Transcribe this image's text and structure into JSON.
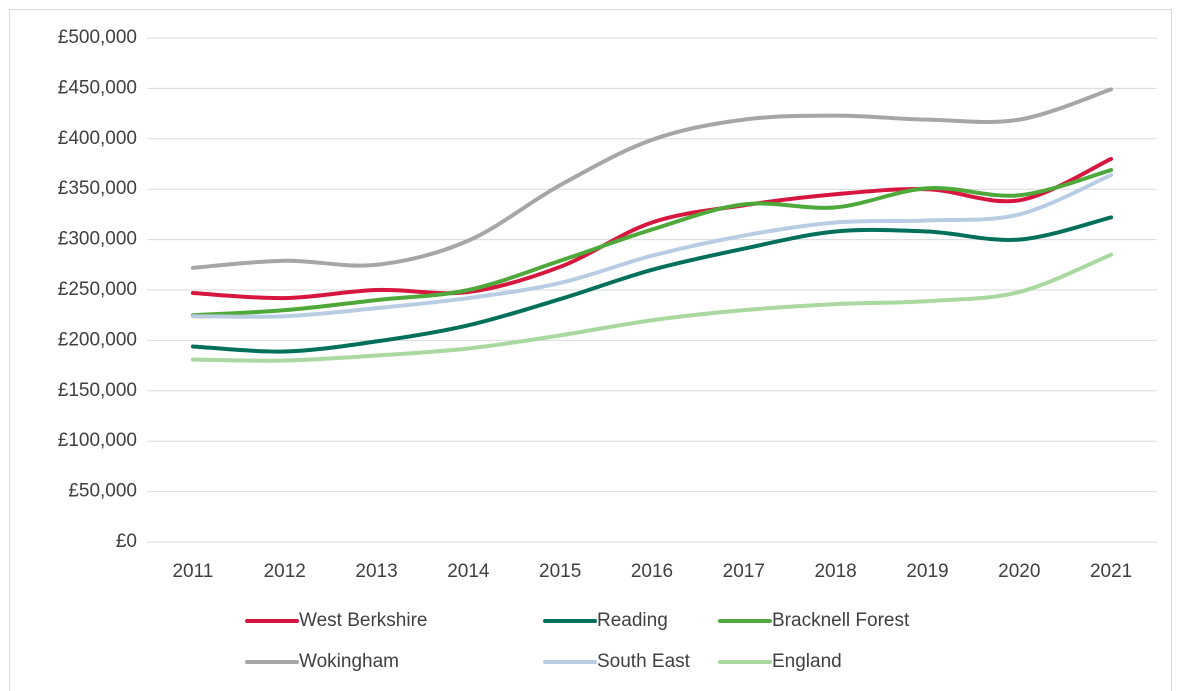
{
  "chart_data": {
    "type": "line",
    "categories": [
      "2011",
      "2012",
      "2013",
      "2014",
      "2015",
      "2016",
      "2017",
      "2018",
      "2019",
      "2020",
      "2021"
    ],
    "series": [
      {
        "name": "West Berkshire",
        "color": "#d6163f",
        "values": [
          247000,
          242000,
          250000,
          248000,
          273000,
          317000,
          334000,
          345000,
          350000,
          339000,
          380000
        ]
      },
      {
        "name": "Reading",
        "color": "#00705a",
        "values": [
          194000,
          189000,
          199000,
          215000,
          241000,
          270000,
          291000,
          308000,
          308000,
          300000,
          322000
        ]
      },
      {
        "name": "Bracknell Forest",
        "color": "#4fa83a",
        "values": [
          225000,
          230000,
          240000,
          250000,
          279000,
          310000,
          335000,
          332000,
          351000,
          344000,
          369000
        ]
      },
      {
        "name": "Wokingham",
        "color": "#a6a6a6",
        "values": [
          272000,
          279000,
          275000,
          299000,
          354000,
          399000,
          419000,
          423000,
          419000,
          419000,
          449000
        ]
      },
      {
        "name": "South East",
        "color": "#b8cce4",
        "values": [
          224000,
          224000,
          232000,
          242000,
          257000,
          284000,
          304000,
          317000,
          319000,
          325000,
          364000
        ]
      },
      {
        "name": "England",
        "color": "#a9d8a0",
        "values": [
          181000,
          180000,
          185000,
          192000,
          205000,
          220000,
          230000,
          236000,
          239000,
          248000,
          285000
        ]
      }
    ],
    "ylim": [
      0,
      500000
    ],
    "yticks": [
      {
        "value": 0,
        "label": "£0"
      },
      {
        "value": 50000,
        "label": "£50,000"
      },
      {
        "value": 100000,
        "label": "£100,000"
      },
      {
        "value": 150000,
        "label": "£150,000"
      },
      {
        "value": 200000,
        "label": "£200,000"
      },
      {
        "value": 250000,
        "label": "£250,000"
      },
      {
        "value": 300000,
        "label": "£300,000"
      },
      {
        "value": 350000,
        "label": "£350,000"
      },
      {
        "value": 400000,
        "label": "£400,000"
      },
      {
        "value": 450000,
        "label": "£450,000"
      },
      {
        "value": 500000,
        "label": "£500,000"
      }
    ],
    "grid": true,
    "legend": "bottom"
  }
}
